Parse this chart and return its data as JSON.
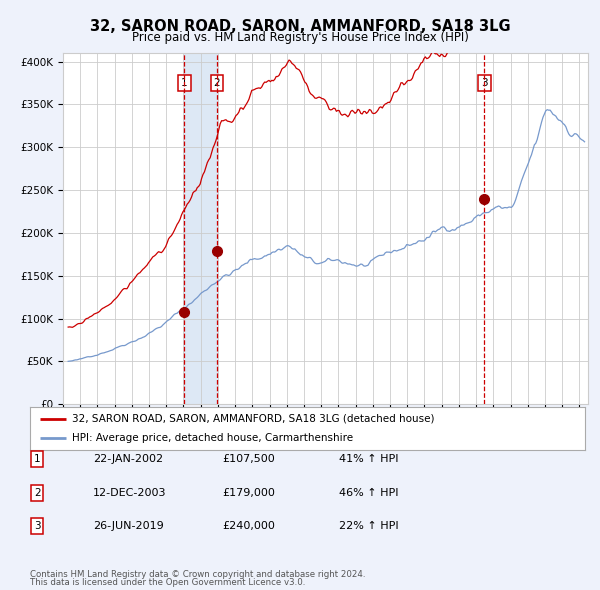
{
  "title": "32, SARON ROAD, SARON, AMMANFORD, SA18 3LG",
  "subtitle": "Price paid vs. HM Land Registry's House Price Index (HPI)",
  "legend_line1": "32, SARON ROAD, SARON, AMMANFORD, SA18 3LG (detached house)",
  "legend_line2": "HPI: Average price, detached house, Carmarthenshire",
  "footer1": "Contains HM Land Registry data © Crown copyright and database right 2024.",
  "footer2": "This data is licensed under the Open Government Licence v3.0.",
  "transactions": [
    {
      "num": 1,
      "date": "22-JAN-2002",
      "price": 107500,
      "pct": "41%",
      "direction": "↑"
    },
    {
      "num": 2,
      "date": "12-DEC-2003",
      "price": 179000,
      "pct": "46%",
      "direction": "↑"
    },
    {
      "num": 3,
      "date": "26-JUN-2019",
      "price": 240000,
      "pct": "22%",
      "direction": "↑"
    }
  ],
  "transaction_dates_numeric": [
    2002.055,
    2003.945,
    2019.486
  ],
  "transaction_prices": [
    107500,
    179000,
    240000
  ],
  "hpi_color": "#7799cc",
  "price_color": "#cc0000",
  "dot_color": "#990000",
  "grid_color": "#cccccc",
  "background_color": "#eef2fb",
  "plot_bg": "#ffffff",
  "shade_color": "#dde8f5",
  "ylim": [
    0,
    410000
  ],
  "yticks": [
    0,
    50000,
    100000,
    150000,
    200000,
    250000,
    300000,
    350000,
    400000
  ],
  "ytick_labels": [
    "£0",
    "£50K",
    "£100K",
    "£150K",
    "£200K",
    "£250K",
    "£300K",
    "£350K",
    "£400K"
  ],
  "xmin": 1995.3,
  "xmax": 2025.5
}
